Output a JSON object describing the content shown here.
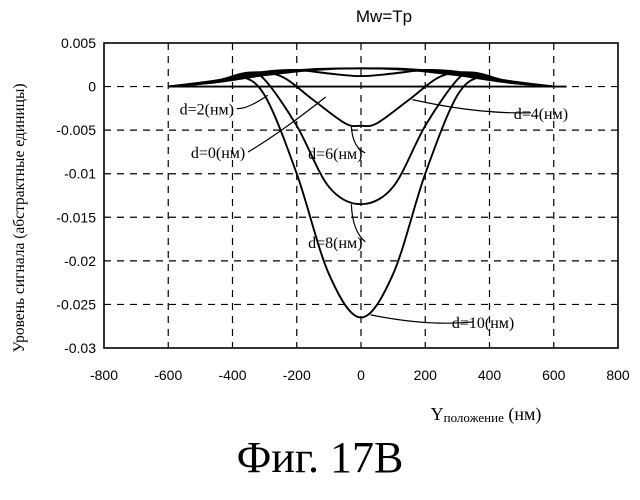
{
  "chart_data": {
    "type": "line",
    "title": "Mw=Tp",
    "xlabel": {
      "symbol": "Y",
      "sub": "положение",
      "unit": " (нм)"
    },
    "ylabel": "Уровень сигнала (абстрактные единицы)",
    "xlim": [
      -800,
      800
    ],
    "ylim": [
      -0.03,
      0.005
    ],
    "xticks": [
      -800,
      -600,
      -400,
      -200,
      0,
      200,
      400,
      600,
      800
    ],
    "yticks": [
      0.005,
      0,
      -0.005,
      -0.01,
      -0.015,
      -0.02,
      -0.025,
      -0.03
    ],
    "ytick_labels": [
      "0.005",
      "0",
      "-0.005",
      "-0.01",
      "-0.015",
      "-0.02",
      "-0.025",
      "-0.03"
    ],
    "grid": true,
    "series": [
      {
        "name": "d=0(нм)",
        "x": [
          -600,
          -450,
          -300,
          -150,
          0,
          150,
          300,
          450,
          600
        ],
        "y": [
          0,
          0.0005,
          0.0013,
          0.0019,
          0.0021,
          0.0019,
          0.0013,
          0.0005,
          0
        ]
      },
      {
        "name": "d=2(нм)",
        "x": [
          -600,
          -450,
          -300,
          -150,
          0,
          150,
          300,
          450,
          600
        ],
        "y": [
          0,
          0.0006,
          0.0015,
          0.002,
          0.0021,
          0.002,
          0.0015,
          0.0006,
          0
        ]
      },
      {
        "name": "d=4(нм)",
        "x": [
          -600,
          -450,
          -300,
          -200,
          -100,
          0,
          100,
          200,
          300,
          450,
          600
        ],
        "y": [
          0,
          0.0007,
          0.0017,
          0.0019,
          0.0015,
          0.0012,
          0.0015,
          0.0019,
          0.0017,
          0.0007,
          0
        ]
      },
      {
        "name": "d=6(нм)",
        "x": [
          -600,
          -450,
          -350,
          -250,
          -150,
          -50,
          0,
          50,
          150,
          250,
          350,
          450,
          600
        ],
        "y": [
          0,
          0.0007,
          0.0016,
          0.0012,
          -0.0015,
          -0.0042,
          -0.0045,
          -0.0042,
          -0.0015,
          0.0012,
          0.0016,
          0.0007,
          0
        ]
      },
      {
        "name": "d=8(нм)",
        "x": [
          -600,
          -450,
          -350,
          -300,
          -200,
          -100,
          0,
          100,
          200,
          300,
          350,
          450,
          600
        ],
        "y": [
          0,
          0.0006,
          0.0014,
          0.0008,
          -0.0045,
          -0.0115,
          -0.0135,
          -0.0115,
          -0.0045,
          0.0008,
          0.0014,
          0.0006,
          0
        ]
      },
      {
        "name": "d=10(нм)",
        "x": [
          -600,
          -450,
          -380,
          -300,
          -200,
          -100,
          0,
          100,
          200,
          300,
          380,
          450,
          600
        ],
        "y": [
          0,
          0.0005,
          0.0012,
          -0.001,
          -0.01,
          -0.0215,
          -0.0265,
          -0.0215,
          -0.01,
          -0.001,
          0.0012,
          0.0005,
          0
        ]
      }
    ],
    "annotations": [
      {
        "text": "d=2(нм)",
        "x": -480,
        "y": -0.0032,
        "px": -290,
        "py": -0.001
      },
      {
        "text": "d=0(нм)",
        "x": -445,
        "y": -0.0082,
        "px": -110,
        "py": -0.0012
      },
      {
        "text": "d=6(нм)",
        "x": -80,
        "y": -0.0083,
        "px": -30,
        "py": -0.0045
      },
      {
        "text": "d=8(нм)",
        "x": -80,
        "y": -0.0185,
        "px": -30,
        "py": -0.0135
      },
      {
        "text": "d=4(нм)",
        "x": 560,
        "y": -0.0037,
        "px": 160,
        "py": -0.0015
      },
      {
        "text": "d=10(нм)",
        "x": 380,
        "y": -0.0277,
        "px": 30,
        "py": -0.0262
      }
    ]
  },
  "figure": {
    "caption": "Фиг. 17В"
  }
}
